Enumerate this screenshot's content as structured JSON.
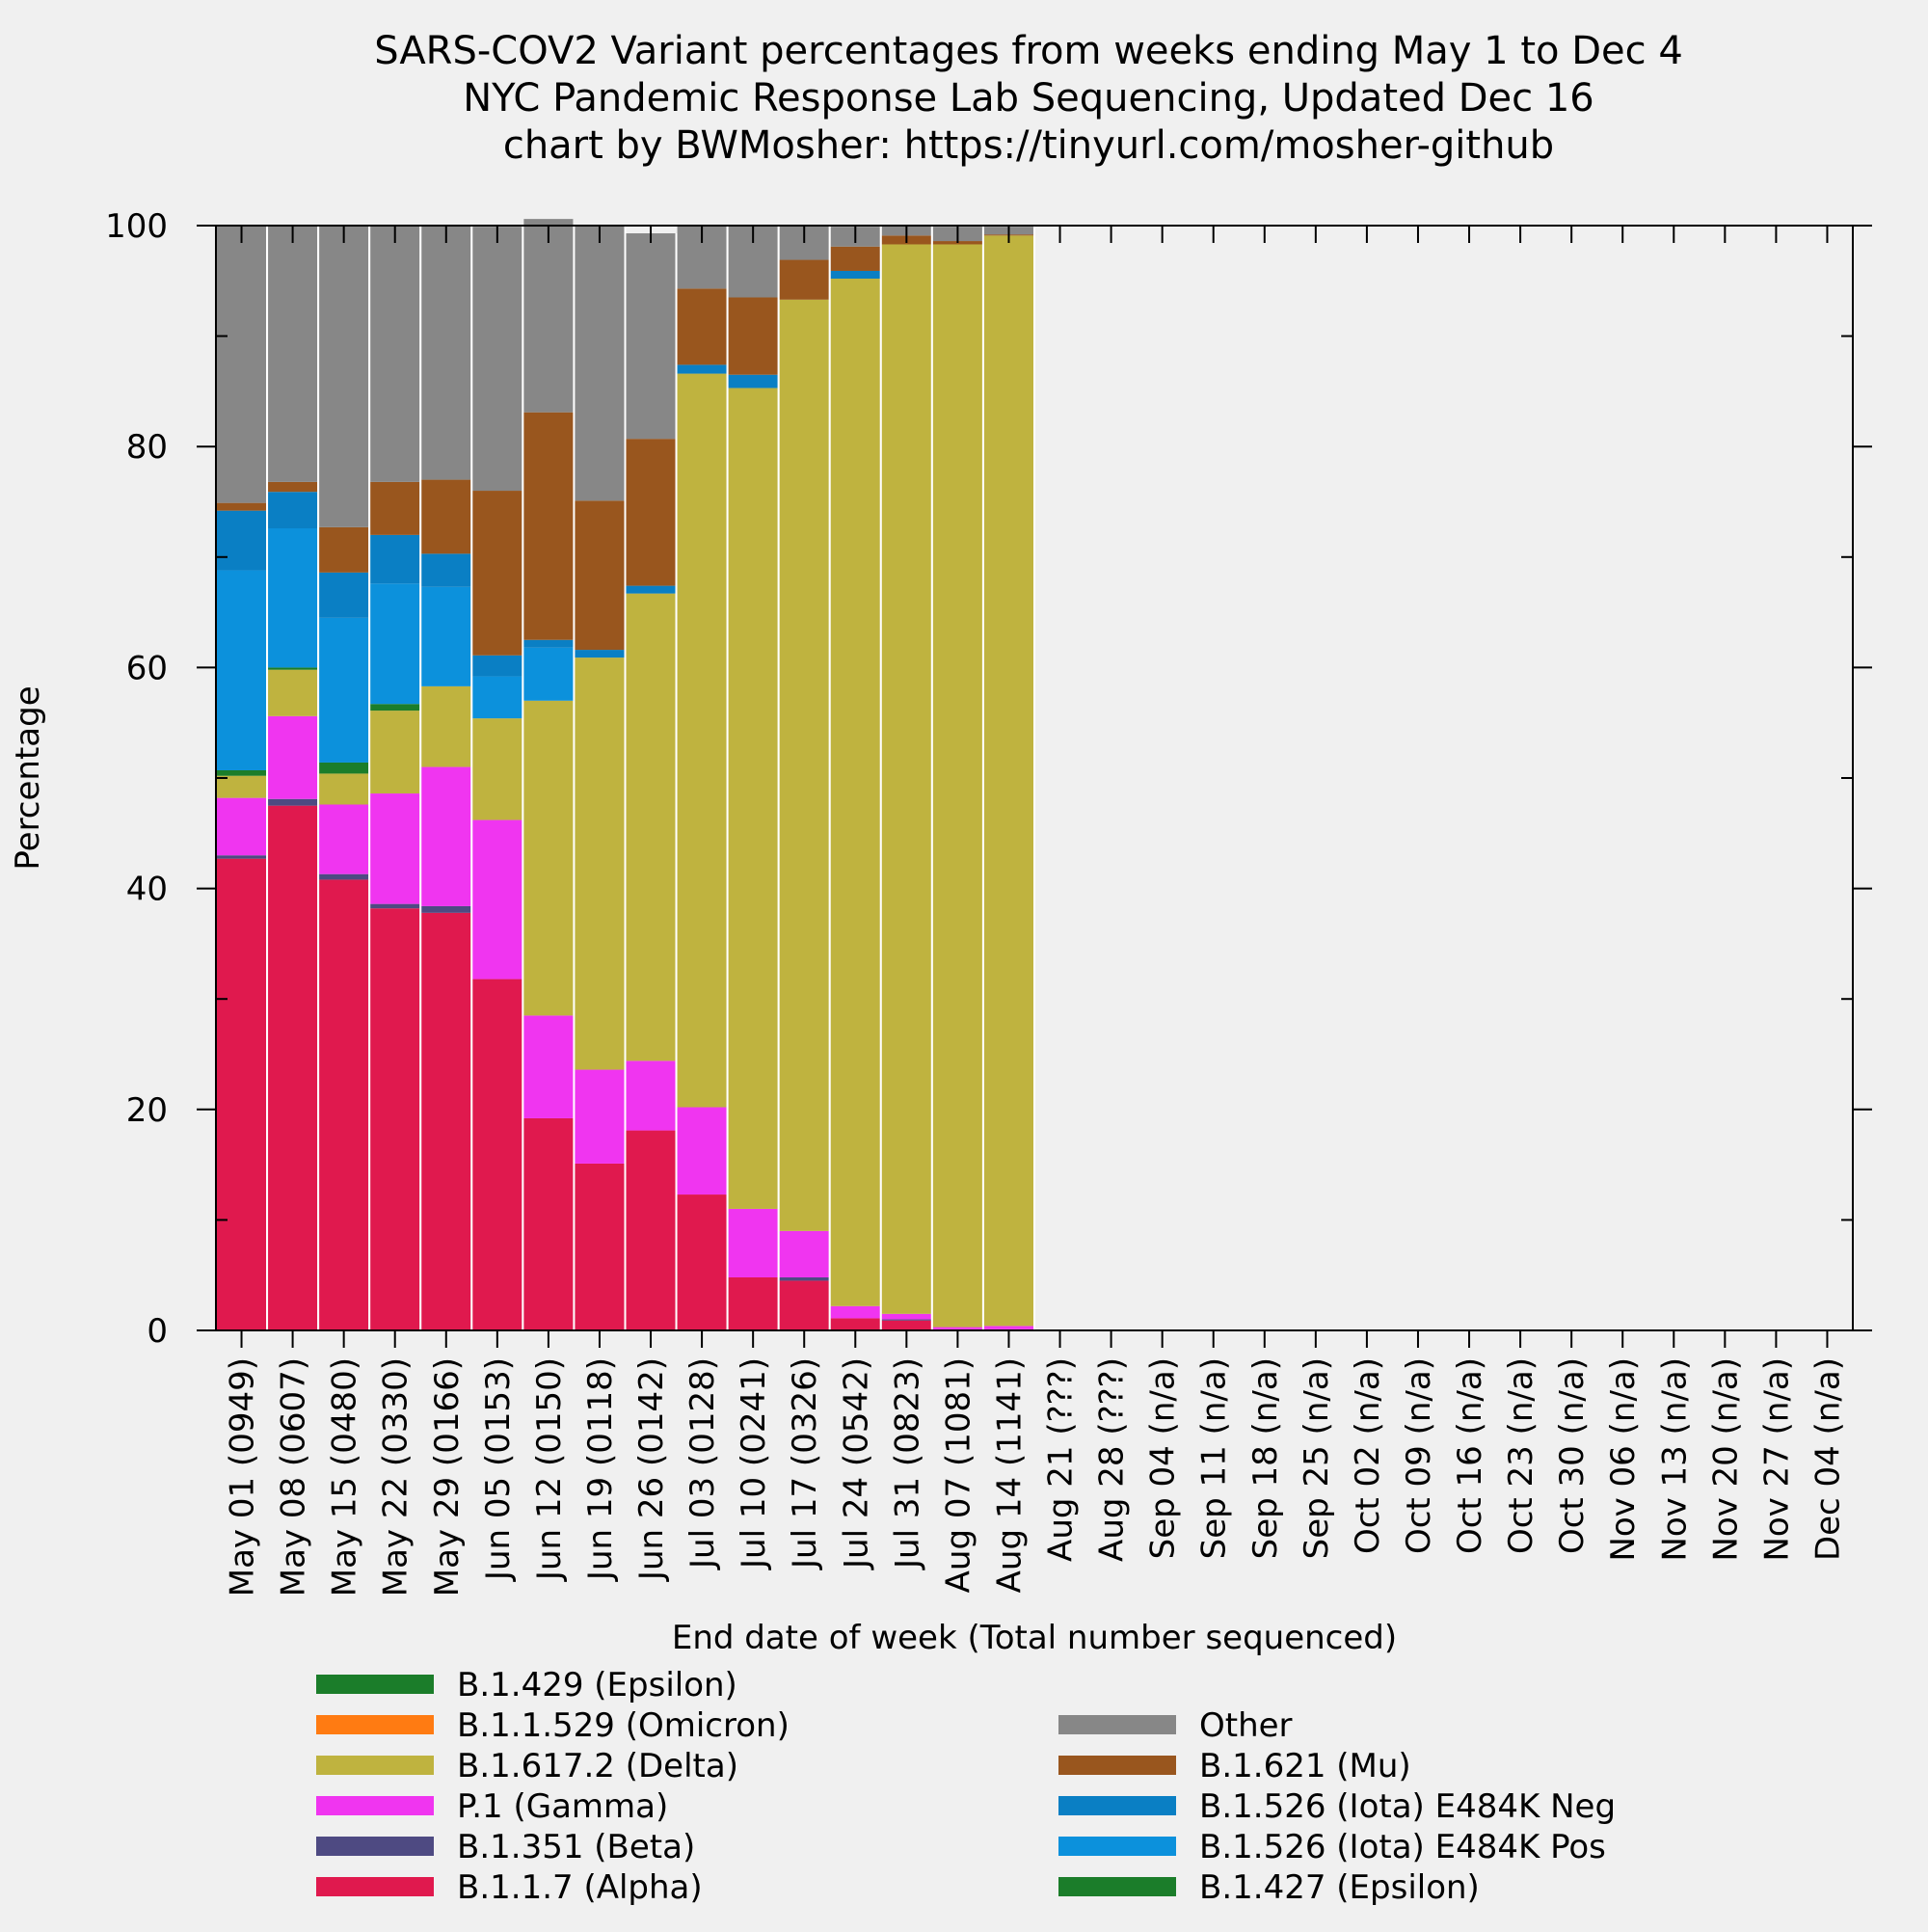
{
  "chart_data": {
    "type": "bar",
    "stacked": true,
    "title_lines": [
      "SARS-COV2 Variant percentages from weeks ending May 1 to Dec 4",
      "NYC Pandemic Response Lab Sequencing, Updated Dec 16",
      "chart by BWMosher: https://tinyurl.com/mosher-github"
    ],
    "xlabel": "End date of week (Total number sequenced)",
    "ylabel": "Percentage",
    "ylim": [
      0,
      100
    ],
    "yticks": [
      "0",
      "20",
      "40",
      "60",
      "80",
      "100"
    ],
    "categories": [
      "May 01 (0949)",
      "May 08 (0607)",
      "May 15 (0480)",
      "May 22 (0330)",
      "May 29 (0166)",
      "Jun 05 (0153)",
      "Jun 12 (0150)",
      "Jun 19 (0118)",
      "Jun 26 (0142)",
      "Jul 03 (0128)",
      "Jul 10 (0241)",
      "Jul 17 (0326)",
      "Jul 24 (0542)",
      "Jul 31 (0823)",
      "Aug 07 (1081)",
      "Aug 14 (1141)",
      "Aug 21 (???)",
      "Aug 28 (???)",
      "Sep 04 (n/a)",
      "Sep 11 (n/a)",
      "Sep 18 (n/a)",
      "Sep 25 (n/a)",
      "Oct 02 (n/a)",
      "Oct 09 (n/a)",
      "Oct 16 (n/a)",
      "Oct 23 (n/a)",
      "Oct 30 (n/a)",
      "Nov 06 (n/a)",
      "Nov 13 (n/a)",
      "Nov 20 (n/a)",
      "Nov 27 (n/a)",
      "Dec 04 (n/a)"
    ],
    "series": [
      {
        "name": "B.1.1.7 (Alpha)",
        "color": "#e0194e",
        "values": [
          42.7,
          47.5,
          40.8,
          38.2,
          37.8,
          31.8,
          19.2,
          15.1,
          18.1,
          12.3,
          4.8,
          4.5,
          1.1,
          0.9,
          0.1,
          0.1,
          0,
          0,
          0,
          0,
          0,
          0,
          0,
          0,
          0,
          0,
          0,
          0,
          0,
          0,
          0,
          0
        ]
      },
      {
        "name": "B.1.351 (Beta)",
        "color": "#4e4a82",
        "values": [
          0.3,
          0.6,
          0.5,
          0.4,
          0.6,
          0,
          0,
          0,
          0,
          0,
          0,
          0.3,
          0,
          0.1,
          0,
          0,
          0,
          0,
          0,
          0,
          0,
          0,
          0,
          0,
          0,
          0,
          0,
          0,
          0,
          0,
          0,
          0
        ]
      },
      {
        "name": "P.1 (Gamma)",
        "color": "#f035f0",
        "values": [
          5.2,
          7.5,
          6.3,
          10.0,
          12.6,
          14.4,
          9.3,
          8.5,
          6.3,
          7.9,
          6.2,
          4.2,
          1.1,
          0.5,
          0.2,
          0.3,
          0,
          0,
          0,
          0,
          0,
          0,
          0,
          0,
          0,
          0,
          0,
          0,
          0,
          0,
          0,
          0
        ]
      },
      {
        "name": "B.1.617.2 (Delta)",
        "color": "#bfb33f",
        "values": [
          2.0,
          4.2,
          2.8,
          7.5,
          7.3,
          9.2,
          28.5,
          37.3,
          42.3,
          66.4,
          74.3,
          84.3,
          93.0,
          96.8,
          98.0,
          98.7,
          0,
          0,
          0,
          0,
          0,
          0,
          0,
          0,
          0,
          0,
          0,
          0,
          0,
          0,
          0,
          0
        ]
      },
      {
        "name": "B.1.1.529 (Omicron)",
        "color": "#ff7b12",
        "values": [
          0,
          0,
          0,
          0,
          0,
          0,
          0,
          0,
          0,
          0,
          0,
          0,
          0,
          0,
          0,
          0,
          0,
          0,
          0,
          0,
          0,
          0,
          0,
          0,
          0,
          0,
          0,
          0,
          0,
          0,
          0,
          0
        ]
      },
      {
        "name": "B.1.429 (Epsilon)",
        "color": "#1b7d2a",
        "values": [
          0.5,
          0.2,
          1.0,
          0.6,
          0,
          0,
          0,
          0,
          0,
          0,
          0,
          0,
          0,
          0,
          0,
          0,
          0,
          0,
          0,
          0,
          0,
          0,
          0,
          0,
          0,
          0,
          0,
          0,
          0,
          0,
          0,
          0
        ]
      },
      {
        "name": "B.1.427 (Epsilon)",
        "color": "#1b7d2a",
        "values": [
          0,
          0,
          0,
          0,
          0,
          0,
          0,
          0,
          0,
          0,
          0,
          0,
          0,
          0,
          0,
          0,
          0,
          0,
          0,
          0,
          0,
          0,
          0,
          0,
          0,
          0,
          0,
          0,
          0,
          0,
          0,
          0
        ]
      },
      {
        "name": "B.1.526 (Iota) E484K Pos",
        "color": "#0c91dc",
        "values": [
          18.1,
          12.6,
          13.1,
          10.9,
          9.0,
          3.8,
          4.8,
          0,
          0,
          0,
          0,
          0,
          0,
          0,
          0,
          0,
          0,
          0,
          0,
          0,
          0,
          0,
          0,
          0,
          0,
          0,
          0,
          0,
          0,
          0,
          0,
          0
        ]
      },
      {
        "name": "B.1.526 (Iota) E484K Neg",
        "color": "#0a7fc4",
        "values": [
          5.4,
          3.3,
          4.1,
          4.4,
          3.0,
          1.9,
          0.7,
          0.7,
          0.7,
          0.8,
          1.2,
          0,
          0.7,
          0,
          0,
          0,
          0,
          0,
          0,
          0,
          0,
          0,
          0,
          0,
          0,
          0,
          0,
          0,
          0,
          0,
          0,
          0
        ]
      },
      {
        "name": "B.1.621 (Mu)",
        "color": "#99561e",
        "values": [
          0.7,
          0.9,
          4.1,
          4.8,
          6.7,
          14.9,
          20.6,
          13.5,
          13.3,
          6.9,
          7.0,
          3.6,
          2.2,
          0.8,
          0.3,
          0.1,
          0,
          0,
          0,
          0,
          0,
          0,
          0,
          0,
          0,
          0,
          0,
          0,
          0,
          0,
          0,
          0
        ]
      },
      {
        "name": "Other",
        "color": "#878787",
        "values": [
          25.1,
          23.2,
          27.3,
          23.2,
          23.0,
          23.9,
          17.5,
          24.9,
          18.6,
          5.7,
          6.5,
          3.1,
          1.8,
          0.9,
          1.3,
          0.7,
          0,
          0,
          0,
          0,
          0,
          0,
          0,
          0,
          0,
          0,
          0,
          0,
          0,
          0,
          0,
          0
        ]
      }
    ],
    "legend": {
      "placement": "bottom",
      "left_column": [
        "B.1.429 (Epsilon)",
        "B.1.1.529 (Omicron)",
        "B.1.617.2 (Delta)",
        "P.1 (Gamma)",
        "B.1.351 (Beta)",
        "B.1.1.7 (Alpha)"
      ],
      "right_column": [
        "Other",
        "B.1.621 (Mu)",
        "B.1.526 (Iota) E484K Neg",
        "B.1.526 (Iota) E484K Pos",
        "B.1.427 (Epsilon)"
      ]
    },
    "grid": false
  }
}
